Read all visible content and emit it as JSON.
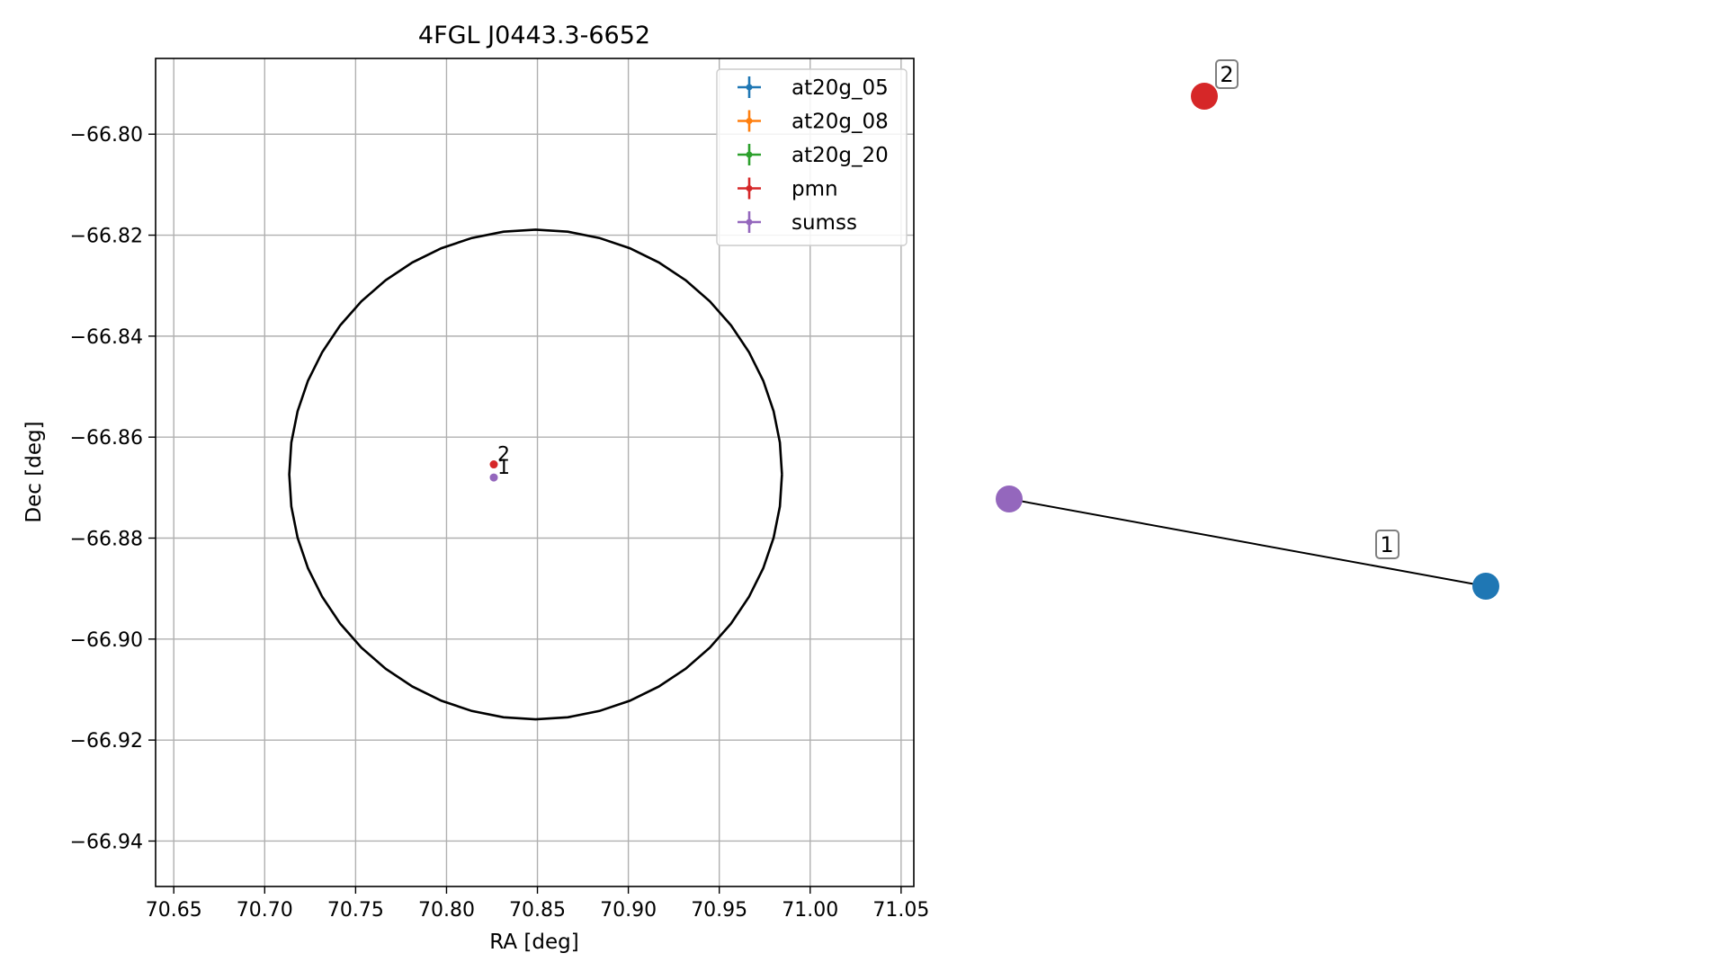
{
  "chart_data": [
    {
      "type": "scatter",
      "title": "4FGL J0443.3-6652",
      "xlabel": "RA [deg]",
      "ylabel": "Dec [deg]",
      "xlim": [
        70.64,
        71.057
      ],
      "ylim": [
        -66.949,
        -66.785
      ],
      "x_ticks": [
        70.65,
        70.7,
        70.75,
        70.8,
        70.85,
        70.9,
        70.95,
        71.0,
        71.05
      ],
      "x_tick_labels": [
        "70.65",
        "70.70",
        "70.75",
        "70.80",
        "70.85",
        "70.90",
        "70.95",
        "71.00",
        "71.05"
      ],
      "y_ticks": [
        -66.8,
        -66.82,
        -66.84,
        -66.86,
        -66.88,
        -66.9,
        -66.92,
        -66.94
      ],
      "y_tick_labels": [
        "−66.80",
        "−66.82",
        "−66.84",
        "−66.86",
        "−66.88",
        "−66.90",
        "−66.92",
        "−66.94"
      ],
      "grid": true,
      "legend_position": "top-right",
      "legend": [
        {
          "label": "at20g_05",
          "color": "#1f77b4"
        },
        {
          "label": "at20g_08",
          "color": "#ff7f0e"
        },
        {
          "label": "at20g_20",
          "color": "#2ca02c"
        },
        {
          "label": "pmn",
          "color": "#d62728"
        },
        {
          "label": "sumss",
          "color": "#9467bd"
        }
      ],
      "ellipse": {
        "center": [
          70.849,
          -66.8674
        ],
        "semi_axis_ra": 0.1355,
        "semi_axis_dec": 0.0485,
        "color": "#000000"
      },
      "points": [
        {
          "label": "2",
          "catalog": "pmn",
          "x": 70.826,
          "y": -66.8654,
          "color": "#d62728"
        },
        {
          "label": "1",
          "catalog": "sumss",
          "x": 70.826,
          "y": -66.868,
          "color": "#9467bd"
        }
      ]
    },
    {
      "type": "network",
      "nodes": [
        {
          "id": "sumss",
          "color": "#9467bd"
        },
        {
          "id": "at20g",
          "color": "#1f77b4"
        },
        {
          "id": "pmn",
          "color": "#d62728"
        }
      ],
      "edges": [
        {
          "source": "sumss",
          "target": "at20g",
          "label": "1"
        }
      ],
      "node_labels": [
        {
          "node": "pmn",
          "label": "2"
        }
      ]
    }
  ]
}
